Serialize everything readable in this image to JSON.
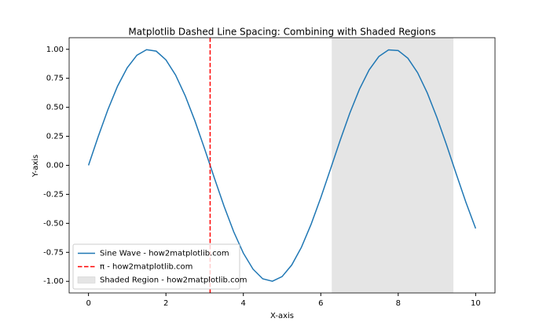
{
  "chart_data": {
    "type": "line",
    "title": "Matplotlib Dashed Line Spacing: Combining with Shaded Regions",
    "x_label": "X-axis",
    "y_label": "Y-axis",
    "x": [
      0,
      0.25,
      0.5,
      0.75,
      1,
      1.25,
      1.5,
      1.75,
      2,
      2.25,
      2.5,
      2.75,
      3,
      3.25,
      3.5,
      3.75,
      4,
      4.25,
      4.5,
      4.75,
      5,
      5.25,
      5.5,
      5.75,
      6,
      6.25,
      6.5,
      6.75,
      7,
      7.25,
      7.5,
      7.75,
      8,
      8.25,
      8.5,
      8.75,
      9,
      9.25,
      9.5,
      9.75,
      10
    ],
    "series": [
      {
        "name": "Sine Wave - how2matplotlib.com",
        "color": "#1f77b4",
        "values": [
          0,
          0.247,
          0.479,
          0.682,
          0.841,
          0.949,
          0.997,
          0.984,
          0.909,
          0.778,
          0.598,
          0.382,
          0.141,
          -0.108,
          -0.351,
          -0.572,
          -0.757,
          -0.895,
          -0.978,
          -0.999,
          -0.959,
          -0.859,
          -0.706,
          -0.508,
          -0.279,
          -0.033,
          0.215,
          0.45,
          0.657,
          0.823,
          0.938,
          0.995,
          0.989,
          0.923,
          0.799,
          0.625,
          0.412,
          0.174,
          -0.075,
          -0.32,
          -0.544
        ]
      }
    ],
    "vlines": [
      {
        "name": "π - how2matplotlib.com",
        "color": "#ff0000",
        "x": 3.1416
      }
    ],
    "spans": [
      {
        "name": "Shaded Region - how2matplotlib.com",
        "color": "#e5e5e5",
        "xmin": 6.2832,
        "xmax": 9.4248
      }
    ],
    "xlim": [
      -0.5,
      10.5
    ],
    "ylim": [
      -1.1,
      1.1
    ],
    "xticks": [
      0,
      2,
      4,
      6,
      8,
      10
    ],
    "yticks": [
      {
        "value": -1,
        "label": "-1.00"
      },
      {
        "value": -0.75,
        "label": "-0.75"
      },
      {
        "value": -0.5,
        "label": "-0.50"
      },
      {
        "value": -0.25,
        "label": "-0.25"
      },
      {
        "value": 0,
        "label": "0.00"
      },
      {
        "value": 0.25,
        "label": "0.25"
      },
      {
        "value": 0.5,
        "label": "0.50"
      },
      {
        "value": 0.75,
        "label": "0.75"
      },
      {
        "value": 1,
        "label": "1.00"
      }
    ],
    "legend": "lower left"
  }
}
